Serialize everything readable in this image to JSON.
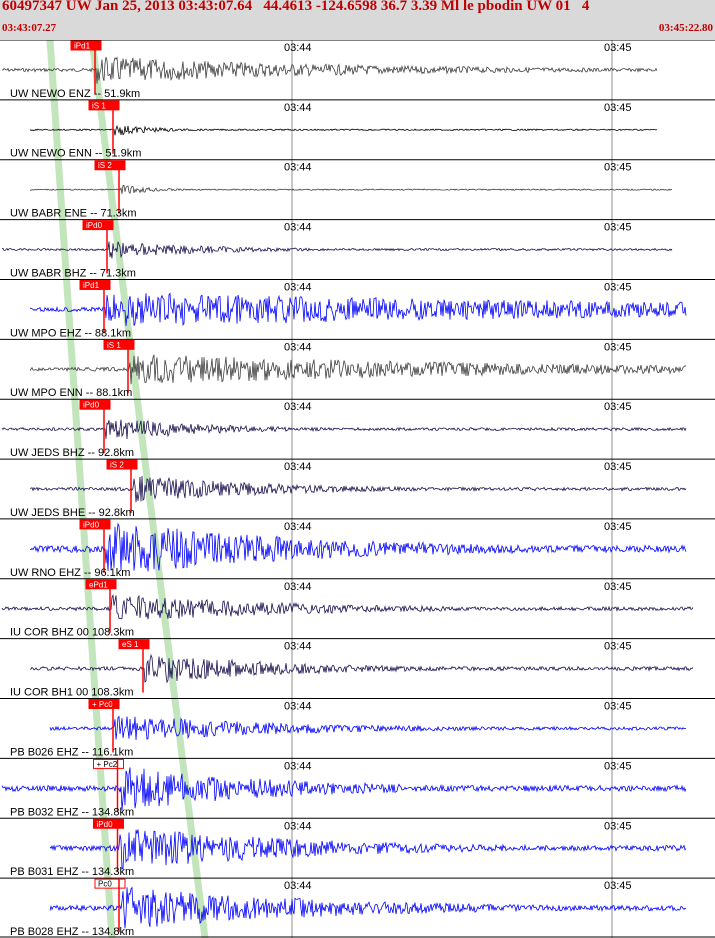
{
  "header": {
    "title": "60497347 UW Jan 25, 2013 03:43:07.64   44.4613 -124.6598 36.7 3.39 Ml le pbodin UW 01   4",
    "start_time": "03:43:07.27",
    "end_time": "03:45:22.80"
  },
  "time_ticks": [
    "03:44",
    "03:45"
  ],
  "colors": {
    "gray_trace": "#404040",
    "blue_trace": "#0000ff",
    "dark_trace": "#1a1050",
    "pick": "#ff0000",
    "green_band": "#b8e0b0",
    "grid": "#909090"
  },
  "traces": [
    {
      "label": "UW NEWO ENZ -- 51.9km",
      "pick": "iPd1",
      "pick_style": "filled",
      "color": "gray",
      "amp": 14,
      "onset": 0.09,
      "tail": 0.35,
      "end": 0.92
    },
    {
      "label": "UW NEWO ENN -- 51.9km",
      "pick": "iS 1",
      "pick_style": "filled",
      "color": "black",
      "amp": 6,
      "onset": 0.15,
      "tail": 0.06,
      "end": 0.92
    },
    {
      "label": "UW BABR ENE -- 71.3km",
      "pick": "iS 2",
      "pick_style": "filled",
      "color": "gray",
      "amp": 5,
      "onset": 0.17,
      "tail": 0.05,
      "end": 0.94
    },
    {
      "label": "UW BABR BHZ -- 71.3km",
      "pick": "iPd0",
      "pick_style": "filled",
      "color": "dark",
      "amp": 9,
      "onset": 0.13,
      "tail": 0.15,
      "end": 0.94
    },
    {
      "label": "UW MPO EHZ -- 88.1km",
      "pick": "iPd1",
      "pick_style": "filled",
      "color": "blue",
      "amp": 18,
      "onset": 0.12,
      "tail": 0.9,
      "end": 0.96
    },
    {
      "label": "UW MPO ENN -- 88.1km",
      "pick": "iS 1",
      "pick_style": "filled",
      "color": "gray",
      "amp": 16,
      "onset": 0.2,
      "tail": 0.55,
      "end": 0.96
    },
    {
      "label": "UW JEDS BHZ -- 92.8km",
      "pick": "iPd0",
      "pick_style": "filled",
      "color": "dark",
      "amp": 12,
      "onset": 0.12,
      "tail": 0.15,
      "end": 0.96
    },
    {
      "label": "UW JEDS BHE -- 92.8km",
      "pick": "iS 2",
      "pick_style": "filled",
      "color": "dark",
      "amp": 14,
      "onset": 0.21,
      "tail": 0.2,
      "end": 0.96
    },
    {
      "label": "UW RNO EHZ -- 96.1km",
      "pick": "iPd0",
      "pick_style": "filled",
      "color": "blue",
      "amp": 28,
      "onset": 0.12,
      "tail": 0.3,
      "end": 0.96
    },
    {
      "label": "IU COR BHZ 00 108.3km",
      "pick": "ePd1",
      "pick_style": "filled",
      "color": "dark",
      "amp": 15,
      "onset": 0.14,
      "tail": 0.25,
      "end": 0.97
    },
    {
      "label": "IU COR BH1 00 108.3km",
      "pick": "eS 1",
      "pick_style": "filled",
      "color": "dark",
      "amp": 16,
      "onset": 0.25,
      "tail": 0.2,
      "end": 0.97
    },
    {
      "label": "PB B026 EHZ -- 116.1km",
      "pick": "+ Pc0",
      "pick_style": "filled",
      "color": "blue",
      "amp": 14,
      "onset": 0.15,
      "tail": 0.25,
      "end": 0.96
    },
    {
      "label": "PB B032 EHZ -- 134.8km",
      "pick": "+ Pc2",
      "pick_style": "outline",
      "color": "blue",
      "amp": 24,
      "onset": 0.165,
      "tail": 0.22,
      "end": 0.96
    },
    {
      "label": "PB B031 EHZ -- 134.3km",
      "pick": "iPd0",
      "pick_style": "filled",
      "color": "blue",
      "amp": 22,
      "onset": 0.165,
      "tail": 0.28,
      "end": 0.96
    },
    {
      "label": "PB B028 EHZ -- 134.8km",
      "pick": "Pc0",
      "pick_style": "outline",
      "color": "blue",
      "amp": 22,
      "onset": 0.17,
      "tail": 0.3,
      "end": 0.96
    }
  ]
}
